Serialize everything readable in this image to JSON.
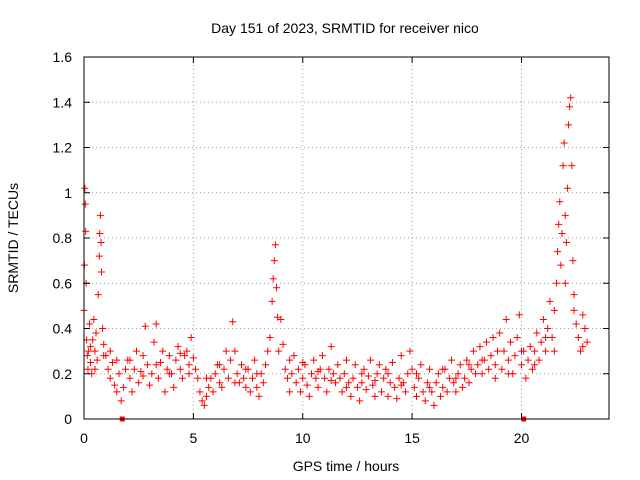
{
  "chart_data": {
    "type": "scatter",
    "title": "Day 151 of 2023, SRMTID for receiver nico",
    "xlabel": "GPS time / hours",
    "ylabel": "SRMTID / TECUs",
    "xlim": [
      0,
      24
    ],
    "ylim": [
      0,
      1.6
    ],
    "xticks": [
      0,
      5,
      10,
      15,
      20
    ],
    "xtick_labels": [
      "0",
      "5",
      "10",
      "15",
      "20"
    ],
    "yticks": [
      0,
      0.2,
      0.4,
      0.6,
      0.8,
      1.0,
      1.2,
      1.4,
      1.6
    ],
    "ytick_labels": [
      "0",
      "0.2",
      "0.4",
      "0.6",
      "0.8",
      "1",
      "1.2",
      "1.4",
      "1.6"
    ],
    "grid": true,
    "marker": "+",
    "color": "#ff0000",
    "series": [
      {
        "name": "SRMTID",
        "points": [
          [
            0.0,
            0.48
          ],
          [
            0.02,
            0.68
          ],
          [
            0.04,
            1.02
          ],
          [
            0.06,
            0.95
          ],
          [
            0.08,
            0.83
          ],
          [
            0.1,
            0.6
          ],
          [
            0.12,
            0.35
          ],
          [
            0.15,
            0.28
          ],
          [
            0.18,
            0.22
          ],
          [
            0.2,
            0.3
          ],
          [
            0.25,
            0.42
          ],
          [
            0.3,
            0.25
          ],
          [
            0.35,
            0.2
          ],
          [
            0.4,
            0.35
          ],
          [
            0.45,
            0.44
          ],
          [
            0.5,
            0.3
          ],
          [
            0.55,
            0.38
          ],
          [
            0.6,
            0.26
          ],
          [
            0.65,
            0.55
          ],
          [
            0.7,
            0.72
          ],
          [
            0.72,
            0.82
          ],
          [
            0.75,
            0.9
          ],
          [
            0.78,
            0.78
          ],
          [
            0.8,
            0.65
          ],
          [
            0.85,
            0.4
          ],
          [
            0.9,
            0.33
          ],
          [
            1.0,
            0.28
          ],
          [
            1.1,
            0.22
          ],
          [
            1.2,
            0.18
          ],
          [
            1.3,
            0.25
          ],
          [
            1.4,
            0.15
          ],
          [
            1.5,
            0.12
          ],
          [
            1.6,
            0.2
          ],
          [
            1.7,
            0.08
          ],
          [
            1.8,
            0.14
          ],
          [
            1.9,
            0.22
          ],
          [
            2.0,
            0.26
          ],
          [
            2.1,
            0.18
          ],
          [
            2.2,
            0.12
          ],
          [
            2.3,
            0.22
          ],
          [
            2.4,
            0.3
          ],
          [
            2.5,
            0.16
          ],
          [
            2.6,
            0.21
          ],
          [
            2.7,
            0.28
          ],
          [
            2.8,
            0.41
          ],
          [
            2.9,
            0.24
          ],
          [
            3.0,
            0.15
          ],
          [
            3.1,
            0.2
          ],
          [
            3.2,
            0.34
          ],
          [
            3.3,
            0.42
          ],
          [
            3.4,
            0.18
          ],
          [
            3.5,
            0.25
          ],
          [
            3.6,
            0.3
          ],
          [
            3.7,
            0.12
          ],
          [
            3.8,
            0.22
          ],
          [
            3.9,
            0.28
          ],
          [
            4.0,
            0.2
          ],
          [
            4.1,
            0.14
          ],
          [
            4.2,
            0.26
          ],
          [
            4.3,
            0.32
          ],
          [
            4.4,
            0.22
          ],
          [
            4.5,
            0.18
          ],
          [
            4.6,
            0.28
          ],
          [
            4.7,
            0.3
          ],
          [
            4.8,
            0.24
          ],
          [
            4.9,
            0.36
          ],
          [
            5.0,
            0.27
          ],
          [
            5.1,
            0.22
          ],
          [
            5.2,
            0.18
          ],
          [
            5.3,
            0.12
          ],
          [
            5.4,
            0.08
          ],
          [
            5.5,
            0.06
          ],
          [
            5.6,
            0.1
          ],
          [
            5.7,
            0.14
          ],
          [
            5.8,
            0.18
          ],
          [
            5.9,
            0.12
          ],
          [
            6.0,
            0.2
          ],
          [
            6.1,
            0.24
          ],
          [
            6.2,
            0.16
          ],
          [
            6.3,
            0.14
          ],
          [
            6.4,
            0.22
          ],
          [
            6.5,
            0.3
          ],
          [
            6.6,
            0.18
          ],
          [
            6.7,
            0.26
          ],
          [
            6.8,
            0.43
          ],
          [
            6.9,
            0.3
          ],
          [
            7.0,
            0.2
          ],
          [
            7.1,
            0.16
          ],
          [
            7.2,
            0.24
          ],
          [
            7.3,
            0.18
          ],
          [
            7.4,
            0.14
          ],
          [
            7.5,
            0.22
          ],
          [
            7.6,
            0.12
          ],
          [
            7.7,
            0.18
          ],
          [
            7.8,
            0.26
          ],
          [
            7.9,
            0.14
          ],
          [
            8.0,
            0.1
          ],
          [
            8.1,
            0.2
          ],
          [
            8.2,
            0.16
          ],
          [
            8.3,
            0.24
          ],
          [
            8.4,
            0.3
          ],
          [
            8.5,
            0.36
          ],
          [
            8.6,
            0.52
          ],
          [
            8.65,
            0.62
          ],
          [
            8.7,
            0.7
          ],
          [
            8.75,
            0.77
          ],
          [
            8.8,
            0.58
          ],
          [
            8.85,
            0.45
          ],
          [
            8.9,
            0.3
          ],
          [
            9.0,
            0.44
          ],
          [
            9.1,
            0.33
          ],
          [
            9.2,
            0.22
          ],
          [
            9.3,
            0.18
          ],
          [
            9.4,
            0.12
          ],
          [
            9.5,
            0.2
          ],
          [
            9.6,
            0.28
          ],
          [
            9.7,
            0.16
          ],
          [
            9.8,
            0.22
          ],
          [
            9.9,
            0.12
          ],
          [
            10.0,
            0.18
          ],
          [
            10.1,
            0.24
          ],
          [
            10.2,
            0.15
          ],
          [
            10.3,
            0.1
          ],
          [
            10.4,
            0.2
          ],
          [
            10.5,
            0.26
          ],
          [
            10.6,
            0.18
          ],
          [
            10.7,
            0.14
          ],
          [
            10.8,
            0.22
          ],
          [
            10.9,
            0.28
          ],
          [
            11.0,
            0.18
          ],
          [
            11.1,
            0.12
          ],
          [
            11.2,
            0.22
          ],
          [
            11.3,
            0.32
          ],
          [
            11.4,
            0.2
          ],
          [
            11.5,
            0.16
          ],
          [
            11.6,
            0.24
          ],
          [
            11.7,
            0.18
          ],
          [
            11.8,
            0.12
          ],
          [
            11.9,
            0.2
          ],
          [
            12.0,
            0.26
          ],
          [
            12.1,
            0.16
          ],
          [
            12.2,
            0.1
          ],
          [
            12.3,
            0.18
          ],
          [
            12.4,
            0.24
          ],
          [
            12.5,
            0.14
          ],
          [
            12.6,
            0.08
          ],
          [
            12.7,
            0.16
          ],
          [
            12.8,
            0.22
          ],
          [
            12.9,
            0.13
          ],
          [
            13.0,
            0.19
          ],
          [
            13.1,
            0.26
          ],
          [
            13.2,
            0.15
          ],
          [
            13.3,
            0.1
          ],
          [
            13.4,
            0.2
          ],
          [
            13.5,
            0.24
          ],
          [
            13.6,
            0.12
          ],
          [
            13.7,
            0.18
          ],
          [
            13.8,
            0.22
          ],
          [
            13.9,
            0.1
          ],
          [
            14.0,
            0.16
          ],
          [
            14.1,
            0.25
          ],
          [
            14.2,
            0.14
          ],
          [
            14.3,
            0.09
          ],
          [
            14.4,
            0.18
          ],
          [
            14.5,
            0.28
          ],
          [
            14.6,
            0.16
          ],
          [
            14.7,
            0.12
          ],
          [
            14.8,
            0.2
          ],
          [
            14.9,
            0.3
          ],
          [
            15.0,
            0.22
          ],
          [
            15.1,
            0.14
          ],
          [
            15.2,
            0.1
          ],
          [
            15.3,
            0.18
          ],
          [
            15.4,
            0.24
          ],
          [
            15.5,
            0.12
          ],
          [
            15.6,
            0.08
          ],
          [
            15.7,
            0.16
          ],
          [
            15.8,
            0.22
          ],
          [
            15.9,
            0.12
          ],
          [
            16.0,
            0.06
          ],
          [
            16.1,
            0.16
          ],
          [
            16.2,
            0.2
          ],
          [
            16.3,
            0.1
          ],
          [
            16.4,
            0.14
          ],
          [
            16.5,
            0.22
          ],
          [
            16.6,
            0.12
          ],
          [
            16.7,
            0.18
          ],
          [
            16.8,
            0.26
          ],
          [
            16.9,
            0.16
          ],
          [
            17.0,
            0.12
          ],
          [
            17.1,
            0.2
          ],
          [
            17.2,
            0.24
          ],
          [
            17.3,
            0.14
          ],
          [
            17.4,
            0.18
          ],
          [
            17.5,
            0.26
          ],
          [
            17.6,
            0.16
          ],
          [
            17.7,
            0.22
          ],
          [
            17.8,
            0.3
          ],
          [
            17.9,
            0.2
          ],
          [
            18.0,
            0.24
          ],
          [
            18.1,
            0.32
          ],
          [
            18.2,
            0.2
          ],
          [
            18.3,
            0.26
          ],
          [
            18.4,
            0.34
          ],
          [
            18.5,
            0.22
          ],
          [
            18.6,
            0.28
          ],
          [
            18.7,
            0.36
          ],
          [
            18.8,
            0.24
          ],
          [
            18.9,
            0.3
          ],
          [
            19.0,
            0.38
          ],
          [
            19.1,
            0.22
          ],
          [
            19.2,
            0.3
          ],
          [
            19.3,
            0.44
          ],
          [
            19.4,
            0.26
          ],
          [
            19.5,
            0.34
          ],
          [
            19.6,
            0.2
          ],
          [
            19.7,
            0.28
          ],
          [
            19.8,
            0.36
          ],
          [
            19.9,
            0.46
          ],
          [
            20.0,
            0.24
          ],
          [
            20.1,
            0.3
          ],
          [
            20.2,
            0.18
          ],
          [
            20.3,
            0.26
          ],
          [
            20.4,
            0.32
          ],
          [
            20.5,
            0.22
          ],
          [
            20.6,
            0.3
          ],
          [
            20.7,
            0.38
          ],
          [
            20.8,
            0.26
          ],
          [
            20.9,
            0.34
          ],
          [
            21.0,
            0.44
          ],
          [
            21.1,
            0.3
          ],
          [
            21.2,
            0.4
          ],
          [
            21.3,
            0.52
          ],
          [
            21.4,
            0.36
          ],
          [
            21.5,
            0.48
          ],
          [
            21.6,
            0.6
          ],
          [
            21.65,
            0.74
          ],
          [
            21.7,
            0.86
          ],
          [
            21.75,
            0.96
          ],
          [
            21.8,
            0.68
          ],
          [
            21.85,
            0.82
          ],
          [
            21.9,
            1.12
          ],
          [
            21.95,
            1.22
          ],
          [
            22.0,
            0.9
          ],
          [
            22.05,
            0.78
          ],
          [
            22.1,
            1.02
          ],
          [
            22.15,
            1.3
          ],
          [
            22.2,
            1.38
          ],
          [
            22.25,
            1.42
          ],
          [
            22.3,
            1.12
          ],
          [
            22.35,
            0.7
          ],
          [
            22.4,
            0.55
          ],
          [
            22.5,
            0.42
          ],
          [
            22.6,
            0.36
          ],
          [
            22.7,
            0.3
          ],
          [
            22.8,
            0.46
          ],
          [
            22.9,
            0.4
          ],
          [
            23.0,
            0.34
          ],
          [
            0.3,
            0.32
          ],
          [
            0.5,
            0.22
          ],
          [
            0.9,
            0.28
          ],
          [
            1.2,
            0.3
          ],
          [
            1.5,
            0.26
          ],
          [
            2.1,
            0.26
          ],
          [
            2.7,
            0.19
          ],
          [
            3.3,
            0.24
          ],
          [
            3.9,
            0.2
          ],
          [
            4.4,
            0.29
          ],
          [
            4.8,
            0.2
          ],
          [
            5.6,
            0.18
          ],
          [
            6.2,
            0.24
          ],
          [
            6.9,
            0.16
          ],
          [
            7.4,
            0.22
          ],
          [
            7.9,
            0.2
          ],
          [
            9.4,
            0.26
          ],
          [
            10.0,
            0.25
          ],
          [
            10.7,
            0.21
          ],
          [
            11.3,
            0.17
          ],
          [
            12.0,
            0.14
          ],
          [
            12.7,
            0.2
          ],
          [
            13.3,
            0.17
          ],
          [
            13.9,
            0.2
          ],
          [
            14.5,
            0.15
          ],
          [
            15.2,
            0.2
          ],
          [
            15.8,
            0.14
          ],
          [
            16.4,
            0.22
          ],
          [
            17.0,
            0.18
          ],
          [
            17.6,
            0.24
          ],
          [
            18.2,
            0.26
          ],
          [
            18.8,
            0.18
          ],
          [
            19.4,
            0.2
          ],
          [
            20.0,
            0.3
          ],
          [
            20.6,
            0.24
          ],
          [
            21.1,
            0.36
          ],
          [
            21.5,
            0.3
          ],
          [
            22.0,
            0.6
          ],
          [
            22.4,
            0.48
          ],
          [
            22.8,
            0.32
          ]
        ]
      }
    ],
    "highlight_markers": [
      {
        "x": 1.75,
        "y": 0.0
      },
      {
        "x": 20.1,
        "y": 0.0
      }
    ]
  }
}
